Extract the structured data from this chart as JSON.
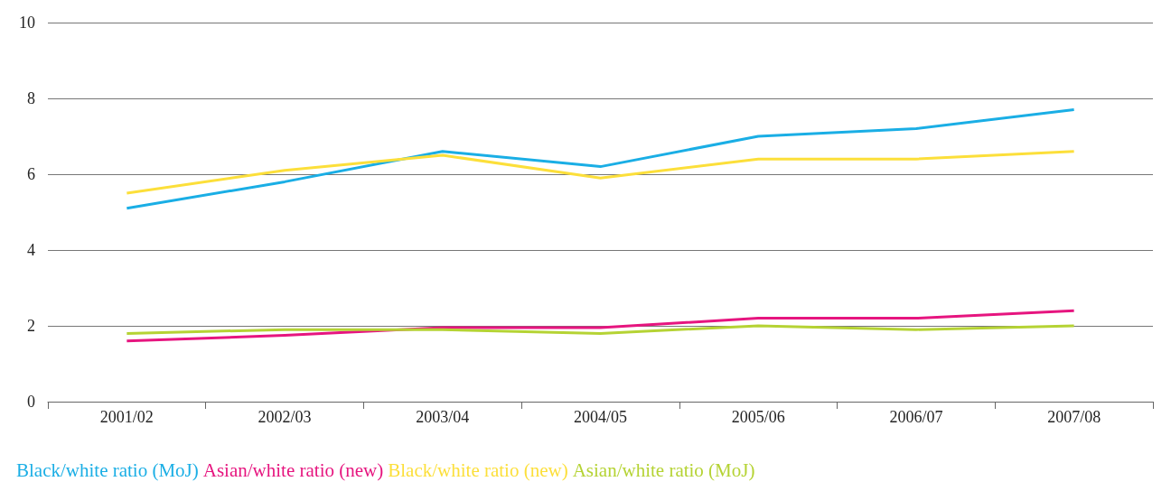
{
  "chart_data": {
    "type": "line",
    "categories": [
      "2001/02",
      "2002/03",
      "2003/04",
      "2004/05",
      "2005/06",
      "2006/07",
      "2007/08"
    ],
    "series": [
      {
        "name": "Black/white ratio (MoJ)",
        "color": "#1aaee5",
        "values": [
          5.1,
          5.8,
          6.6,
          6.2,
          7.0,
          7.2,
          7.7
        ]
      },
      {
        "name": "Asian/white ratio (new)",
        "color": "#e6157f",
        "values": [
          1.6,
          1.75,
          1.95,
          1.95,
          2.2,
          2.2,
          2.4
        ]
      },
      {
        "name": "Black/white ratio (new)",
        "color": "#fcdf3a",
        "values": [
          5.5,
          6.1,
          6.5,
          5.9,
          6.4,
          6.4,
          6.6
        ]
      },
      {
        "name": "Asian/white ratio (MoJ)",
        "color": "#b5d334",
        "values": [
          1.8,
          1.9,
          1.9,
          1.8,
          2.0,
          1.9,
          2.0
        ]
      }
    ],
    "ylim": [
      0,
      10
    ],
    "yticks": [
      0,
      2,
      4,
      6,
      8,
      10
    ],
    "grid": "y",
    "legend": "bottom",
    "marker": "none",
    "line_style": "solid"
  }
}
